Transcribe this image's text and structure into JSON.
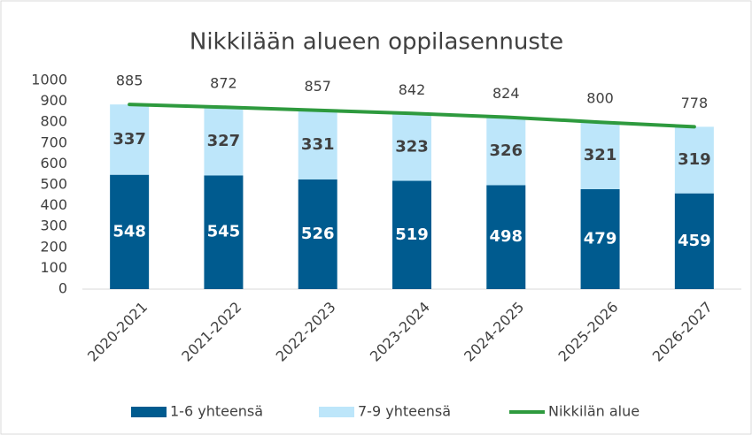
{
  "chart_data": {
    "type": "bar",
    "stacked": true,
    "title": "Nikkilään alueen oppilasennuste",
    "categories": [
      "2020-2021",
      "2021-2022",
      "2022-2023",
      "2023-2024",
      "2024-2025",
      "2025-2026",
      "2026-2027"
    ],
    "series": [
      {
        "name": "1-6 yhteensä",
        "type": "bar",
        "color": "#005b8f",
        "label_color": "#ffffff",
        "values": [
          548,
          545,
          526,
          519,
          498,
          479,
          459
        ]
      },
      {
        "name": "7-9 yhteensä",
        "type": "bar",
        "color": "#bde6fa",
        "label_color": "#404040",
        "values": [
          337,
          327,
          331,
          323,
          326,
          321,
          319
        ]
      },
      {
        "name": "Nikkilän alue",
        "type": "line",
        "color": "#2e9a3e",
        "values": [
          885,
          872,
          857,
          842,
          824,
          800,
          778
        ]
      }
    ],
    "ylim": [
      0,
      1000
    ],
    "yticks": [
      0,
      100,
      200,
      300,
      400,
      500,
      600,
      700,
      800,
      900,
      1000
    ],
    "grid": false,
    "legend": "bottom"
  }
}
